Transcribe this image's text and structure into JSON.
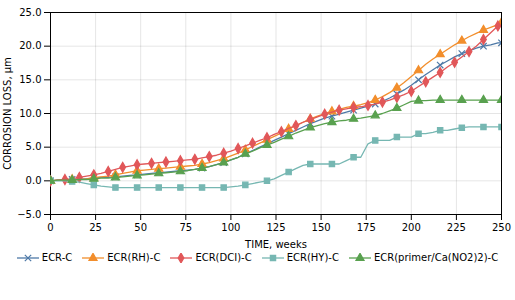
{
  "chart_data": {
    "type": "line",
    "xlabel": "TIME, weeks",
    "ylabel": "CORROSION LOSS, μm",
    "xlim": [
      0,
      250
    ],
    "ylim": [
      -5.0,
      25.0
    ],
    "xticks": [
      0,
      25,
      50,
      75,
      100,
      125,
      150,
      175,
      200,
      225,
      250
    ],
    "yticks": [
      {
        "value": -5.0,
        "label": "−5.0"
      },
      {
        "value": 0.0,
        "label": "0.0"
      },
      {
        "value": 5.0,
        "label": "5.0"
      },
      {
        "value": 10.0,
        "label": "10.0"
      },
      {
        "value": 15.0,
        "label": "15.0"
      },
      {
        "value": 20.0,
        "label": "20.0"
      },
      {
        "value": 25.0,
        "label": "25.0"
      }
    ],
    "grid": true,
    "legend": "bottom",
    "x": [
      0,
      4,
      8,
      12,
      16,
      20,
      24,
      28,
      32,
      36,
      40,
      44,
      48,
      52,
      56,
      60,
      64,
      68,
      72,
      76,
      80,
      84,
      88,
      92,
      96,
      100,
      104,
      108,
      112,
      116,
      120,
      124,
      128,
      132,
      136,
      140,
      144,
      148,
      152,
      156,
      160,
      164,
      168,
      172,
      176,
      180,
      184,
      188,
      192,
      196,
      200,
      204,
      208,
      212,
      216,
      220,
      224,
      228,
      232,
      236,
      240,
      244,
      248,
      250
    ],
    "series": [
      {
        "name": "ECR-C",
        "marker": "x",
        "values": [
          0.0,
          0.1,
          0.1,
          0.2,
          0.2,
          0.3,
          0.4,
          0.5,
          0.5,
          0.6,
          0.7,
          0.8,
          0.9,
          1.0,
          1.1,
          1.2,
          1.3,
          1.4,
          1.5,
          1.6,
          1.7,
          1.9,
          2.1,
          2.4,
          2.7,
          3.1,
          3.5,
          4.0,
          4.5,
          5.0,
          5.5,
          6.0,
          6.5,
          7.0,
          7.5,
          8.0,
          8.5,
          8.9,
          9.3,
          9.6,
          9.9,
          10.2,
          10.5,
          10.8,
          11.1,
          11.4,
          11.8,
          12.3,
          12.9,
          13.5,
          14.2,
          15.0,
          15.8,
          16.5,
          17.2,
          17.8,
          18.4,
          18.9,
          19.3,
          19.7,
          20.0,
          20.2,
          20.5,
          20.5
        ]
      },
      {
        "name": "ECR(RH)-C",
        "marker": "triangle",
        "values": [
          0.0,
          0.1,
          0.1,
          0.2,
          0.2,
          0.3,
          0.5,
          0.6,
          0.7,
          0.9,
          1.1,
          1.3,
          1.5,
          1.6,
          1.7,
          1.8,
          1.9,
          2.0,
          2.1,
          2.2,
          2.3,
          2.5,
          2.7,
          3.0,
          3.3,
          3.7,
          4.1,
          4.6,
          5.1,
          5.6,
          6.1,
          6.6,
          7.1,
          7.7,
          8.2,
          8.7,
          9.2,
          9.6,
          10.0,
          10.3,
          10.6,
          10.9,
          11.1,
          11.3,
          11.6,
          12.0,
          12.5,
          13.1,
          13.8,
          14.6,
          15.5,
          16.4,
          17.3,
          18.1,
          18.8,
          19.5,
          20.2,
          20.8,
          21.4,
          21.9,
          22.4,
          22.8,
          23.2,
          23.5
        ]
      },
      {
        "name": "ECR(DCI)-C",
        "marker": "diamond",
        "values": [
          0.0,
          0.1,
          0.2,
          0.3,
          0.5,
          0.7,
          0.9,
          1.1,
          1.4,
          1.7,
          2.0,
          2.2,
          2.4,
          2.5,
          2.6,
          2.7,
          2.8,
          2.9,
          3.0,
          3.1,
          3.2,
          3.4,
          3.6,
          3.8,
          4.1,
          4.4,
          4.8,
          5.2,
          5.6,
          6.0,
          6.4,
          6.9,
          7.3,
          7.8,
          8.2,
          8.7,
          9.1,
          9.5,
          9.9,
          10.2,
          10.5,
          10.7,
          10.9,
          11.0,
          11.2,
          11.4,
          11.7,
          12.0,
          12.4,
          12.8,
          13.3,
          14.0,
          14.7,
          15.4,
          16.1,
          16.9,
          17.6,
          18.4,
          19.2,
          20.0,
          21.0,
          22.0,
          23.0,
          23.0
        ]
      },
      {
        "name": "ECR(HY)-C",
        "marker": "square",
        "values": [
          0.0,
          0.0,
          0.0,
          -0.1,
          -0.2,
          -0.4,
          -0.6,
          -0.8,
          -0.9,
          -1.0,
          -1.0,
          -1.0,
          -1.0,
          -1.0,
          -1.0,
          -1.0,
          -1.0,
          -1.0,
          -1.0,
          -1.0,
          -1.0,
          -1.0,
          -1.0,
          -1.0,
          -1.0,
          -0.9,
          -0.8,
          -0.6,
          -0.4,
          -0.2,
          0.0,
          0.3,
          0.8,
          1.3,
          1.8,
          2.3,
          2.5,
          2.5,
          2.5,
          2.5,
          2.5,
          3.0,
          3.5,
          3.5,
          5.5,
          6.0,
          6.0,
          6.0,
          6.5,
          6.5,
          6.5,
          7.0,
          7.0,
          7.2,
          7.5,
          7.5,
          7.7,
          7.9,
          8.0,
          8.0,
          8.0,
          8.0,
          8.0,
          8.0
        ]
      },
      {
        "name": "ECR(primer/Ca(NO2)2)-C",
        "marker": "triangle",
        "values": [
          0.0,
          0.1,
          0.1,
          0.1,
          0.2,
          0.2,
          0.3,
          0.4,
          0.4,
          0.5,
          0.6,
          0.7,
          0.8,
          0.9,
          1.0,
          1.1,
          1.2,
          1.3,
          1.4,
          1.5,
          1.7,
          1.9,
          2.1,
          2.4,
          2.7,
          3.1,
          3.5,
          4.0,
          4.4,
          4.9,
          5.3,
          5.7,
          6.2,
          6.6,
          7.1,
          7.5,
          7.9,
          8.2,
          8.5,
          8.7,
          8.9,
          9.0,
          9.2,
          9.3,
          9.5,
          9.7,
          10.0,
          10.4,
          10.8,
          11.3,
          11.8,
          11.9,
          11.9,
          12.0,
          12.0,
          12.0,
          12.0,
          12.0,
          12.0,
          12.0,
          12.0,
          12.0,
          12.0,
          12.0
        ]
      }
    ]
  }
}
